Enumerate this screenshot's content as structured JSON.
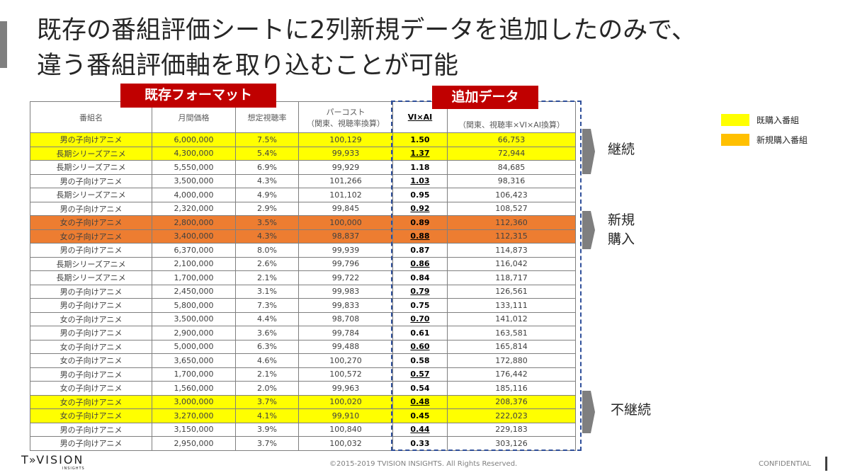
{
  "header": {
    "title_lines": [
      "既存の番組評価シートに2列新規データを追加したのみで、",
      "違う番組評価軸を取り込むことが可能"
    ]
  },
  "badges": {
    "existing": "既存フォーマット",
    "added": "追加データ"
  },
  "table": {
    "headers": [
      [
        "番組名"
      ],
      [
        "月間価格"
      ],
      [
        "想定視聴率"
      ],
      [
        "パーコスト",
        "（関東、視聴率換算）"
      ],
      [
        "VI×AI"
      ],
      [
        "（関東、視聴率×VI×AI換算）"
      ]
    ],
    "rows": [
      {
        "cells": [
          "男の子向けアニメ",
          "6,000,000",
          "7.5%",
          "100,129",
          "1.50",
          "66,753"
        ],
        "fill": "#ffff00"
      },
      {
        "cells": [
          "長期シリーズアニメ",
          "4,300,000",
          "5.4%",
          "99,933",
          "1.37",
          "72,944"
        ],
        "fill": "#ffff00",
        "underline": true
      },
      {
        "cells": [
          "長期シリーズアニメ",
          "5,550,000",
          "6.9%",
          "99,929",
          "1.18",
          "84,685"
        ]
      },
      {
        "cells": [
          "男の子向けアニメ",
          "3,500,000",
          "4.3%",
          "101,266",
          "1.03",
          "98,316"
        ],
        "underline": true
      },
      {
        "cells": [
          "長期シリーズアニメ",
          "4,000,000",
          "4.9%",
          "101,102",
          "0.95",
          "106,423"
        ]
      },
      {
        "cells": [
          "男の子向けアニメ",
          "2,320,000",
          "2.9%",
          "99,845",
          "0.92",
          "108,527"
        ],
        "underline": true
      },
      {
        "cells": [
          "女の子向けアニメ",
          "2,800,000",
          "3.5%",
          "100,000",
          "0.89",
          "112,360"
        ],
        "fill": "#ed7d31"
      },
      {
        "cells": [
          "女の子向けアニメ",
          "3,400,000",
          "4.3%",
          "98,837",
          "0.88",
          "112,315"
        ],
        "fill": "#ed7d31",
        "underline": true
      },
      {
        "cells": [
          "男の子向けアニメ",
          "6,370,000",
          "8.0%",
          "99,939",
          "0.87",
          "114,873"
        ]
      },
      {
        "cells": [
          "長期シリーズアニメ",
          "2,100,000",
          "2.6%",
          "99,796",
          "0.86",
          "116,042"
        ],
        "underline": true
      },
      {
        "cells": [
          "長期シリーズアニメ",
          "1,700,000",
          "2.1%",
          "99,722",
          "0.84",
          "118,717"
        ]
      },
      {
        "cells": [
          "男の子向けアニメ",
          "2,450,000",
          "3.1%",
          "99,983",
          "0.79",
          "126,561"
        ],
        "underline": true
      },
      {
        "cells": [
          "男の子向けアニメ",
          "5,800,000",
          "7.3%",
          "99,833",
          "0.75",
          "133,111"
        ]
      },
      {
        "cells": [
          "女の子向けアニメ",
          "3,500,000",
          "4.4%",
          "98,708",
          "0.70",
          "141,012"
        ],
        "underline": true
      },
      {
        "cells": [
          "男の子向けアニメ",
          "2,900,000",
          "3.6%",
          "99,784",
          "0.61",
          "163,581"
        ]
      },
      {
        "cells": [
          "女の子向けアニメ",
          "5,000,000",
          "6.3%",
          "99,488",
          "0.60",
          "165,814"
        ],
        "underline": true
      },
      {
        "cells": [
          "女の子向けアニメ",
          "3,650,000",
          "4.6%",
          "100,270",
          "0.58",
          "172,880"
        ]
      },
      {
        "cells": [
          "男の子向けアニメ",
          "1,700,000",
          "2.1%",
          "100,572",
          "0.57",
          "176,442"
        ],
        "underline": true
      },
      {
        "cells": [
          "女の子向けアニメ",
          "1,560,000",
          "2.0%",
          "99,963",
          "0.54",
          "185,116"
        ]
      },
      {
        "cells": [
          "女の子向けアニメ",
          "3,000,000",
          "3.7%",
          "100,020",
          "0.48",
          "208,376"
        ],
        "fill": "#ffff00",
        "underline": true
      },
      {
        "cells": [
          "女の子向けアニメ",
          "3,270,000",
          "4.1%",
          "99,910",
          "0.45",
          "222,023"
        ],
        "fill": "#ffff00"
      },
      {
        "cells": [
          "男の子向けアニメ",
          "3,150,000",
          "3.9%",
          "100,840",
          "0.44",
          "229,183"
        ],
        "underline": true
      },
      {
        "cells": [
          "男の子向けアニメ",
          "2,950,000",
          "3.7%",
          "100,032",
          "0.33",
          "303,126"
        ]
      }
    ]
  },
  "callouts": [
    {
      "lines": [
        "継続"
      ]
    },
    {
      "lines": [
        "新規",
        "購入"
      ]
    },
    {
      "lines": [
        "不継続"
      ]
    }
  ],
  "legend": [
    {
      "label": "既購入番組",
      "color": "#ffff00"
    },
    {
      "label": "新規購入番組",
      "color": "#ffc000"
    }
  ],
  "footer": {
    "logo": "T»VISION",
    "logo_sub": "INSIGHTS",
    "copyright": "©2015-2019 TVISION INSIGHTS. All Rights Reserved.",
    "confidential": "CONFIDENTIAL"
  }
}
